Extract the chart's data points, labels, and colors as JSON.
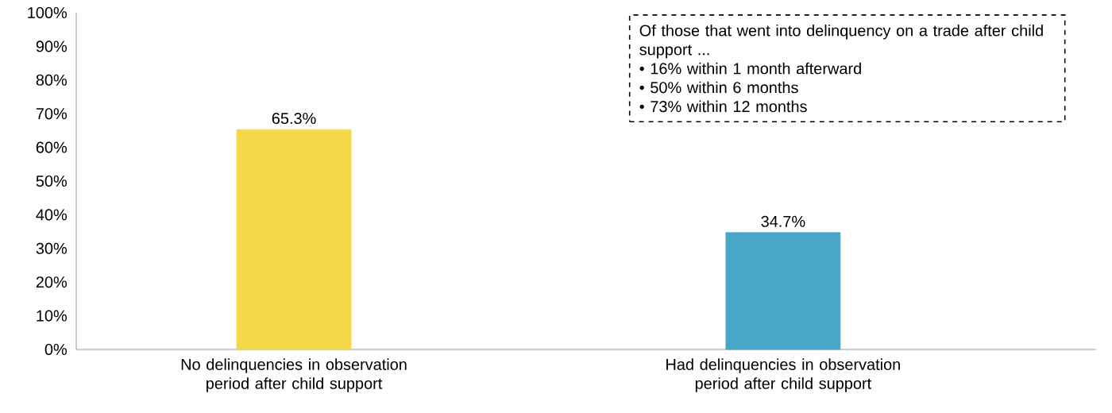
{
  "chart_data": {
    "type": "bar",
    "categories": [
      "No delinquencies in observation period after child support",
      "Had delinquencies in observation period after child support"
    ],
    "values": [
      65.3,
      34.7
    ],
    "colors": [
      "#f5d84a",
      "#48a7c7"
    ],
    "value_labels": [
      "65.3%",
      "34.7%"
    ],
    "ylim": [
      0,
      100
    ],
    "yticks": [
      {
        "value": 0,
        "label": "0%"
      },
      {
        "value": 10,
        "label": "10%"
      },
      {
        "value": 20,
        "label": "20%"
      },
      {
        "value": 30,
        "label": "30%"
      },
      {
        "value": 40,
        "label": "40%"
      },
      {
        "value": 50,
        "label": "50%"
      },
      {
        "value": 60,
        "label": "60%"
      },
      {
        "value": 70,
        "label": "70%"
      },
      {
        "value": 80,
        "label": "80%"
      },
      {
        "value": 90,
        "label": "90%"
      },
      {
        "value": 100,
        "label": "100%"
      }
    ],
    "annotations": [
      "Of those that went into delinquency on a trade after child support ...",
      "• 16% within 1 month afterward",
      "• 50% within 6 months",
      "• 73% within 12 months"
    ],
    "grid": false
  }
}
